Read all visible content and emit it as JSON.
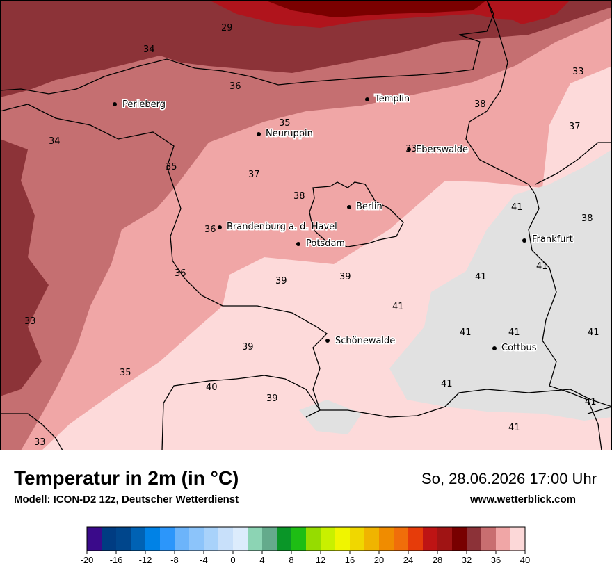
{
  "header": {
    "title": "Temperatur in 2m (in °C)",
    "model": "Modell: ICON-D2 12z, Deutscher Wetterdienst",
    "datetime": "So, 28.06.2026 17:00 Uhr",
    "website": "www.wetterblick.com"
  },
  "colors": {
    "t33": "#8c3338",
    "t35": "#c56f71",
    "t37": "#f0a6a6",
    "t39": "#fddada",
    "t41": "#e1e1e1",
    "t29": "#7a0000",
    "t31": "#b0141c",
    "border": "#000000"
  },
  "cities": [
    {
      "name": "Perleberg"
    },
    {
      "name": "Templin"
    },
    {
      "name": "Neuruppin"
    },
    {
      "name": "Eberswalde"
    },
    {
      "name": "Berlin"
    },
    {
      "name": "Brandenburg a. d. Havel"
    },
    {
      "name": "Potsdam"
    },
    {
      "name": "Frankfurt"
    },
    {
      "name": "Schönewalde"
    },
    {
      "name": "Cottbus"
    }
  ],
  "temperature_labels": [
    "29",
    "34",
    "36",
    "33",
    "38",
    "35",
    "37",
    "34",
    "33",
    "35",
    "37",
    "38",
    "41",
    "38",
    "36",
    "36",
    "39",
    "39",
    "41",
    "41",
    "41",
    "41",
    "41",
    "33",
    "39",
    "35",
    "40",
    "39",
    "41",
    "41",
    "41",
    "33",
    "41"
  ],
  "colorbar": {
    "ticks": [
      "-20",
      "-16",
      "-12",
      "-8",
      "-4",
      "0",
      "4",
      "8",
      "12",
      "16",
      "20",
      "24",
      "28",
      "32",
      "36",
      "40"
    ],
    "colors": [
      "#3a0a8a",
      "#003c82",
      "#00468c",
      "#0062b4",
      "#0082e6",
      "#2c96fa",
      "#6cb4fa",
      "#8cc4fa",
      "#a8d2fa",
      "#c8e0fa",
      "#dcecfc",
      "#8cd4b4",
      "#64aa8c",
      "#0a9628",
      "#1ebe14",
      "#96dc00",
      "#c8f000",
      "#f0f500",
      "#f0d700",
      "#f0b400",
      "#f08c00",
      "#f06e0a",
      "#e63c0a",
      "#be1414",
      "#a01414",
      "#780000",
      "#8c3238",
      "#c86e70",
      "#f0a6a6",
      "#fcd8d8"
    ]
  }
}
